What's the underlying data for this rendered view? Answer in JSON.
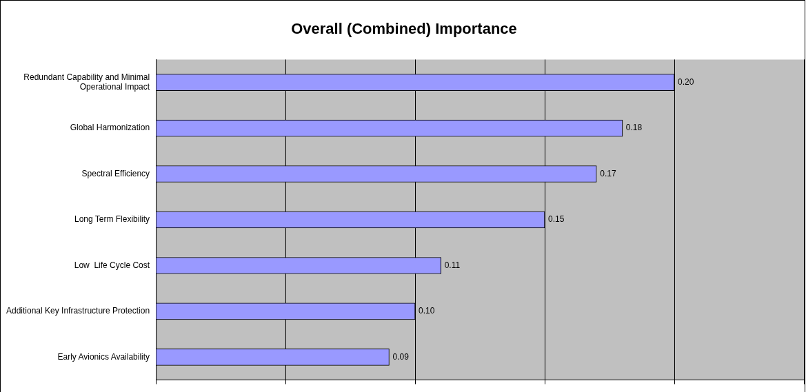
{
  "chart_data": {
    "type": "bar",
    "orientation": "horizontal",
    "title": "Overall (Combined) Importance",
    "categories": [
      "Redundant Capability and Minimal Operational Impact",
      "Global Harmonization",
      "Spectral Efficiency",
      "Long Term Flexibility",
      "Low  Life Cycle Cost",
      "Additional Key Infrastructure Protection",
      "Early Avionics Availability"
    ],
    "values": [
      0.2,
      0.18,
      0.17,
      0.15,
      0.11,
      0.1,
      0.09
    ],
    "value_labels": [
      "0.20",
      "0.18",
      "0.17",
      "0.15",
      "0.11",
      "0.10",
      "0.09"
    ],
    "color": "#9999ff",
    "xlim": [
      0,
      0.25
    ],
    "xticks": [
      {
        "value": 0,
        "label": null
      },
      {
        "value": 0.05,
        "label": null
      },
      {
        "value": 0.1,
        "label": null
      },
      {
        "value": 0.15,
        "label": null
      },
      {
        "value": 0.2,
        "label": null
      },
      {
        "value": 0.25,
        "label": null
      }
    ],
    "tick_labels": "y",
    "grid": "x",
    "legend": false
  }
}
